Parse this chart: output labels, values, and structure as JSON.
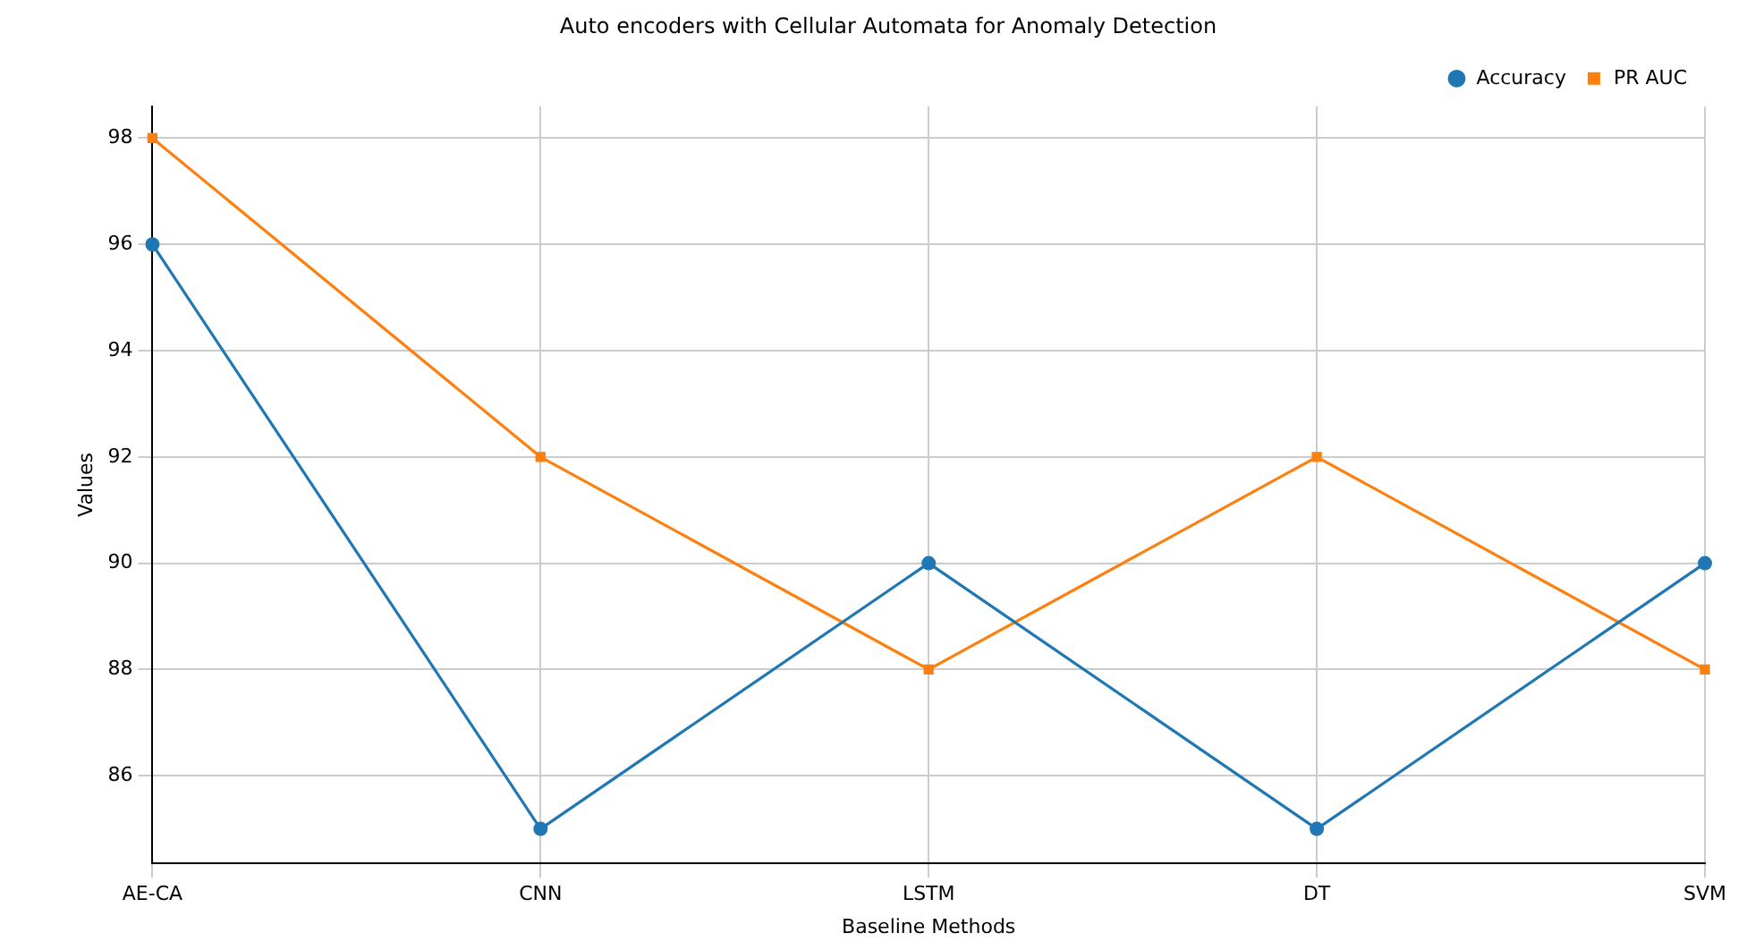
{
  "chart_data": {
    "type": "line",
    "title": "Auto encoders with Cellular Automata for Anomaly Detection",
    "xlabel": "Baseline Methods",
    "ylabel": "Values",
    "categories": [
      "AE-CA",
      "CNN",
      "LSTM",
      "DT",
      "SVM"
    ],
    "series": [
      {
        "name": "Accuracy",
        "color": "#1f77b4",
        "marker": "circle",
        "values": [
          96,
          85,
          90,
          85,
          90
        ]
      },
      {
        "name": "PR AUC",
        "color": "#ff7f0e",
        "marker": "square",
        "values": [
          98,
          92,
          88,
          92,
          88
        ]
      }
    ],
    "ylim": [
      84.35,
      98.6
    ],
    "yticks": [
      86,
      88,
      90,
      92,
      94,
      96,
      98
    ],
    "grid": true,
    "legend": "top right",
    "line_style": "solid"
  }
}
